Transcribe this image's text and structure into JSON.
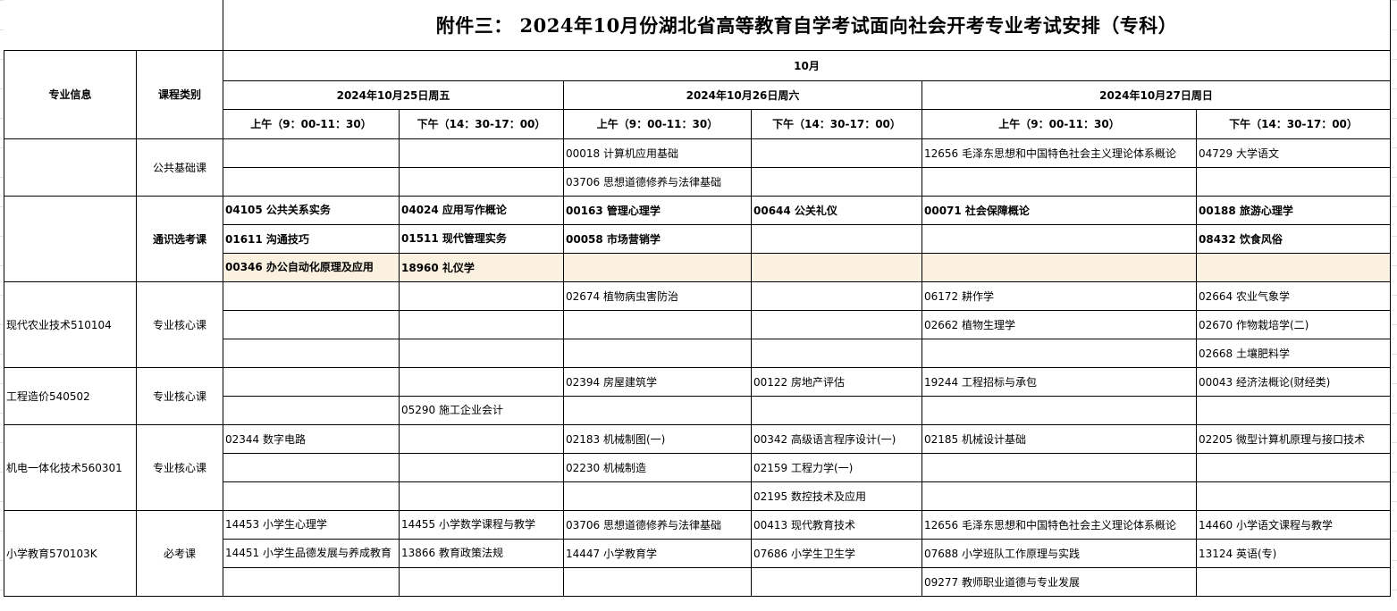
{
  "title": "附件三：  2024年10月份湖北省高等教育自学考试面向社会开考专业考试安排（专科）",
  "header": {
    "major_info": "专业信息",
    "course_type": "课程类别",
    "month": "10月",
    "dates": [
      "2024年10月25日周五",
      "2024年10月26日周六",
      "2024年10月27日周日"
    ],
    "sessions": [
      "上午（9：00-11：30）",
      "下午（14：30-17：00）",
      "上午（9：00-11：30）",
      "下午（14：30-17：00）",
      "上午（9：00-11：30）",
      "下午（14：30-17：00）"
    ]
  },
  "highlight_color": "#fbf1e0",
  "groups": [
    {
      "major": "",
      "category": "公共基础课",
      "bold": false,
      "rows": [
        [
          "",
          "",
          "00018  计算机应用基础",
          "",
          "12656  毛泽东思想和中国特色社会主义理论体系概论",
          "04729  大学语文"
        ],
        [
          "",
          "",
          "03706  思想道德修养与法律基础",
          "",
          "",
          ""
        ]
      ]
    },
    {
      "major": "",
      "category": "通识选考课",
      "bold": true,
      "rows": [
        [
          "04105  公共关系实务",
          "04024  应用写作概论",
          "00163  管理心理学",
          "00644  公关礼仪",
          "00071  社会保障概论",
          "00188  旅游心理学"
        ],
        [
          "01611  沟通技巧",
          "01511  现代管理实务",
          "00058  市场营销学",
          "",
          "",
          "08432  饮食风俗"
        ],
        [
          "00346  办公自动化原理及应用",
          "18960  礼仪学",
          "",
          "",
          "",
          ""
        ]
      ]
    },
    {
      "major": "现代农业技术510104",
      "category": "专业核心课",
      "bold": false,
      "rows": [
        [
          "",
          "",
          "02674  植物病虫害防治",
          "",
          "06172  耕作学",
          "02664  农业气象学"
        ],
        [
          "",
          "",
          "",
          "",
          "02662  植物生理学",
          "02670  作物栽培学(二)"
        ],
        [
          "",
          "",
          "",
          "",
          "",
          "02668  土壤肥料学"
        ]
      ]
    },
    {
      "major": "工程造价540502",
      "category": "专业核心课",
      "bold": false,
      "rows": [
        [
          "",
          "",
          "02394  房屋建筑学",
          "00122  房地产评估",
          "19244  工程招标与承包",
          "00043  经济法概论(财经类)"
        ],
        [
          "",
          "05290  施工企业会计",
          "",
          "",
          "",
          ""
        ]
      ]
    },
    {
      "major": "机电一体化技术560301",
      "category": "专业核心课",
      "bold": false,
      "rows": [
        [
          "02344  数字电路",
          "",
          "02183  机械制图(一)",
          "00342  高级语言程序设计(一)",
          "02185  机械设计基础",
          "02205  微型计算机原理与接口技术"
        ],
        [
          "",
          "",
          "02230  机械制造",
          "02159  工程力学(一)",
          "",
          ""
        ],
        [
          "",
          "",
          "",
          "02195  数控技术及应用",
          "",
          ""
        ]
      ]
    },
    {
      "major": "小学教育570103K",
      "category": "必考课",
      "bold": false,
      "rows": [
        [
          "14453  小学生心理学",
          "14455  小学数学课程与教学",
          "03706  思想道德修养与法律基础",
          "00413  现代教育技术",
          "12656  毛泽东思想和中国特色社会主义理论体系概论",
          "14460  小学语文课程与教学"
        ],
        [
          "14451  小学生品德发展与养成教育",
          "13866  教育政策法规",
          "14447  小学教育学",
          "07686  小学生卫生学",
          "07688  小学班队工作原理与实践",
          "13124  英语(专)"
        ],
        [
          "",
          "",
          "",
          "",
          "09277  教师职业道德与专业发展",
          ""
        ]
      ]
    }
  ]
}
